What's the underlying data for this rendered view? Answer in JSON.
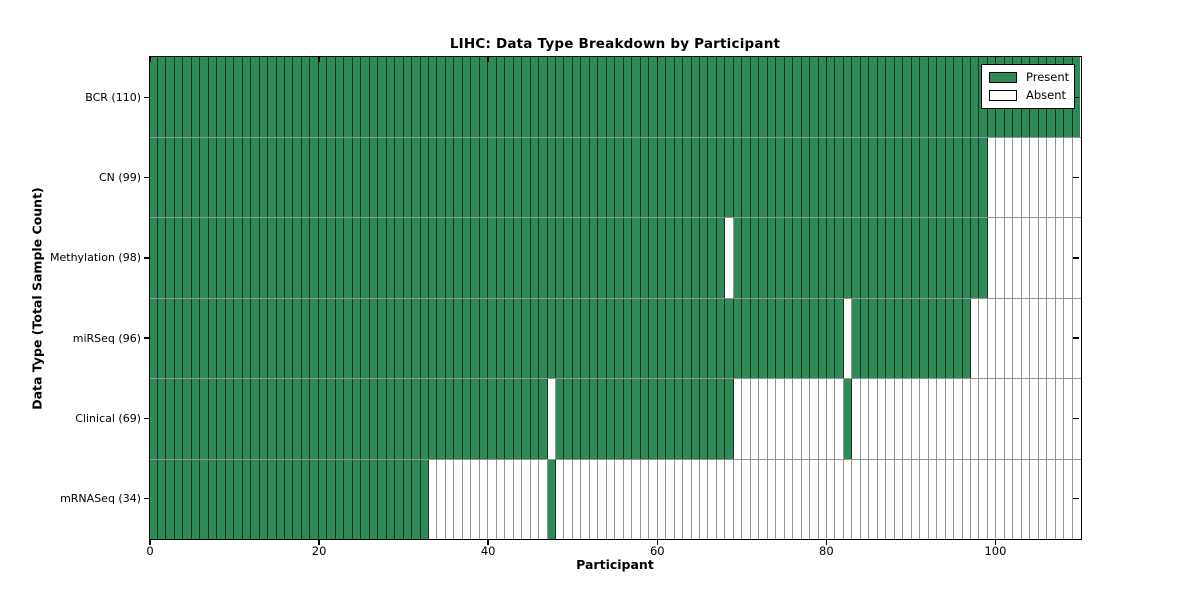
{
  "chart_data": {
    "type": "heatmap",
    "title": "LIHC: Data Type Breakdown by Participant",
    "xlabel": "Participant",
    "ylabel": "Data Type (Total Sample Count)",
    "n_participants": 110,
    "x_range": [
      0,
      110
    ],
    "x_ticks": [
      0,
      20,
      40,
      60,
      80,
      100
    ],
    "grid": false,
    "legend": {
      "position": "upper right",
      "entries": [
        {
          "label": "Present",
          "color": "#2e8b57"
        },
        {
          "label": "Absent",
          "color": "#ffffff"
        }
      ]
    },
    "rows": [
      {
        "label": "BCR (110)",
        "data_type": "BCR",
        "total": 110,
        "absent_ranges": []
      },
      {
        "label": "CN (99)",
        "data_type": "CN",
        "total": 99,
        "absent_ranges": [
          [
            99,
            109
          ]
        ]
      },
      {
        "label": "Methylation (98)",
        "data_type": "Methylation",
        "total": 98,
        "absent_ranges": [
          [
            68,
            68
          ],
          [
            99,
            109
          ]
        ]
      },
      {
        "label": "miRSeq (96)",
        "data_type": "miRSeq",
        "total": 96,
        "absent_ranges": [
          [
            82,
            82
          ],
          [
            97,
            109
          ]
        ]
      },
      {
        "label": "Clinical (69)",
        "data_type": "Clinical",
        "total": 69,
        "absent_ranges": [
          [
            47,
            47
          ],
          [
            69,
            81
          ],
          [
            83,
            109
          ]
        ]
      },
      {
        "label": "mRNASeq (34)",
        "data_type": "mRNASeq",
        "total": 34,
        "absent_ranges": [
          [
            33,
            46
          ],
          [
            48,
            109
          ]
        ]
      }
    ],
    "colors": {
      "present": "#2e8b57",
      "absent": "#ffffff",
      "spine": "#000000"
    }
  }
}
